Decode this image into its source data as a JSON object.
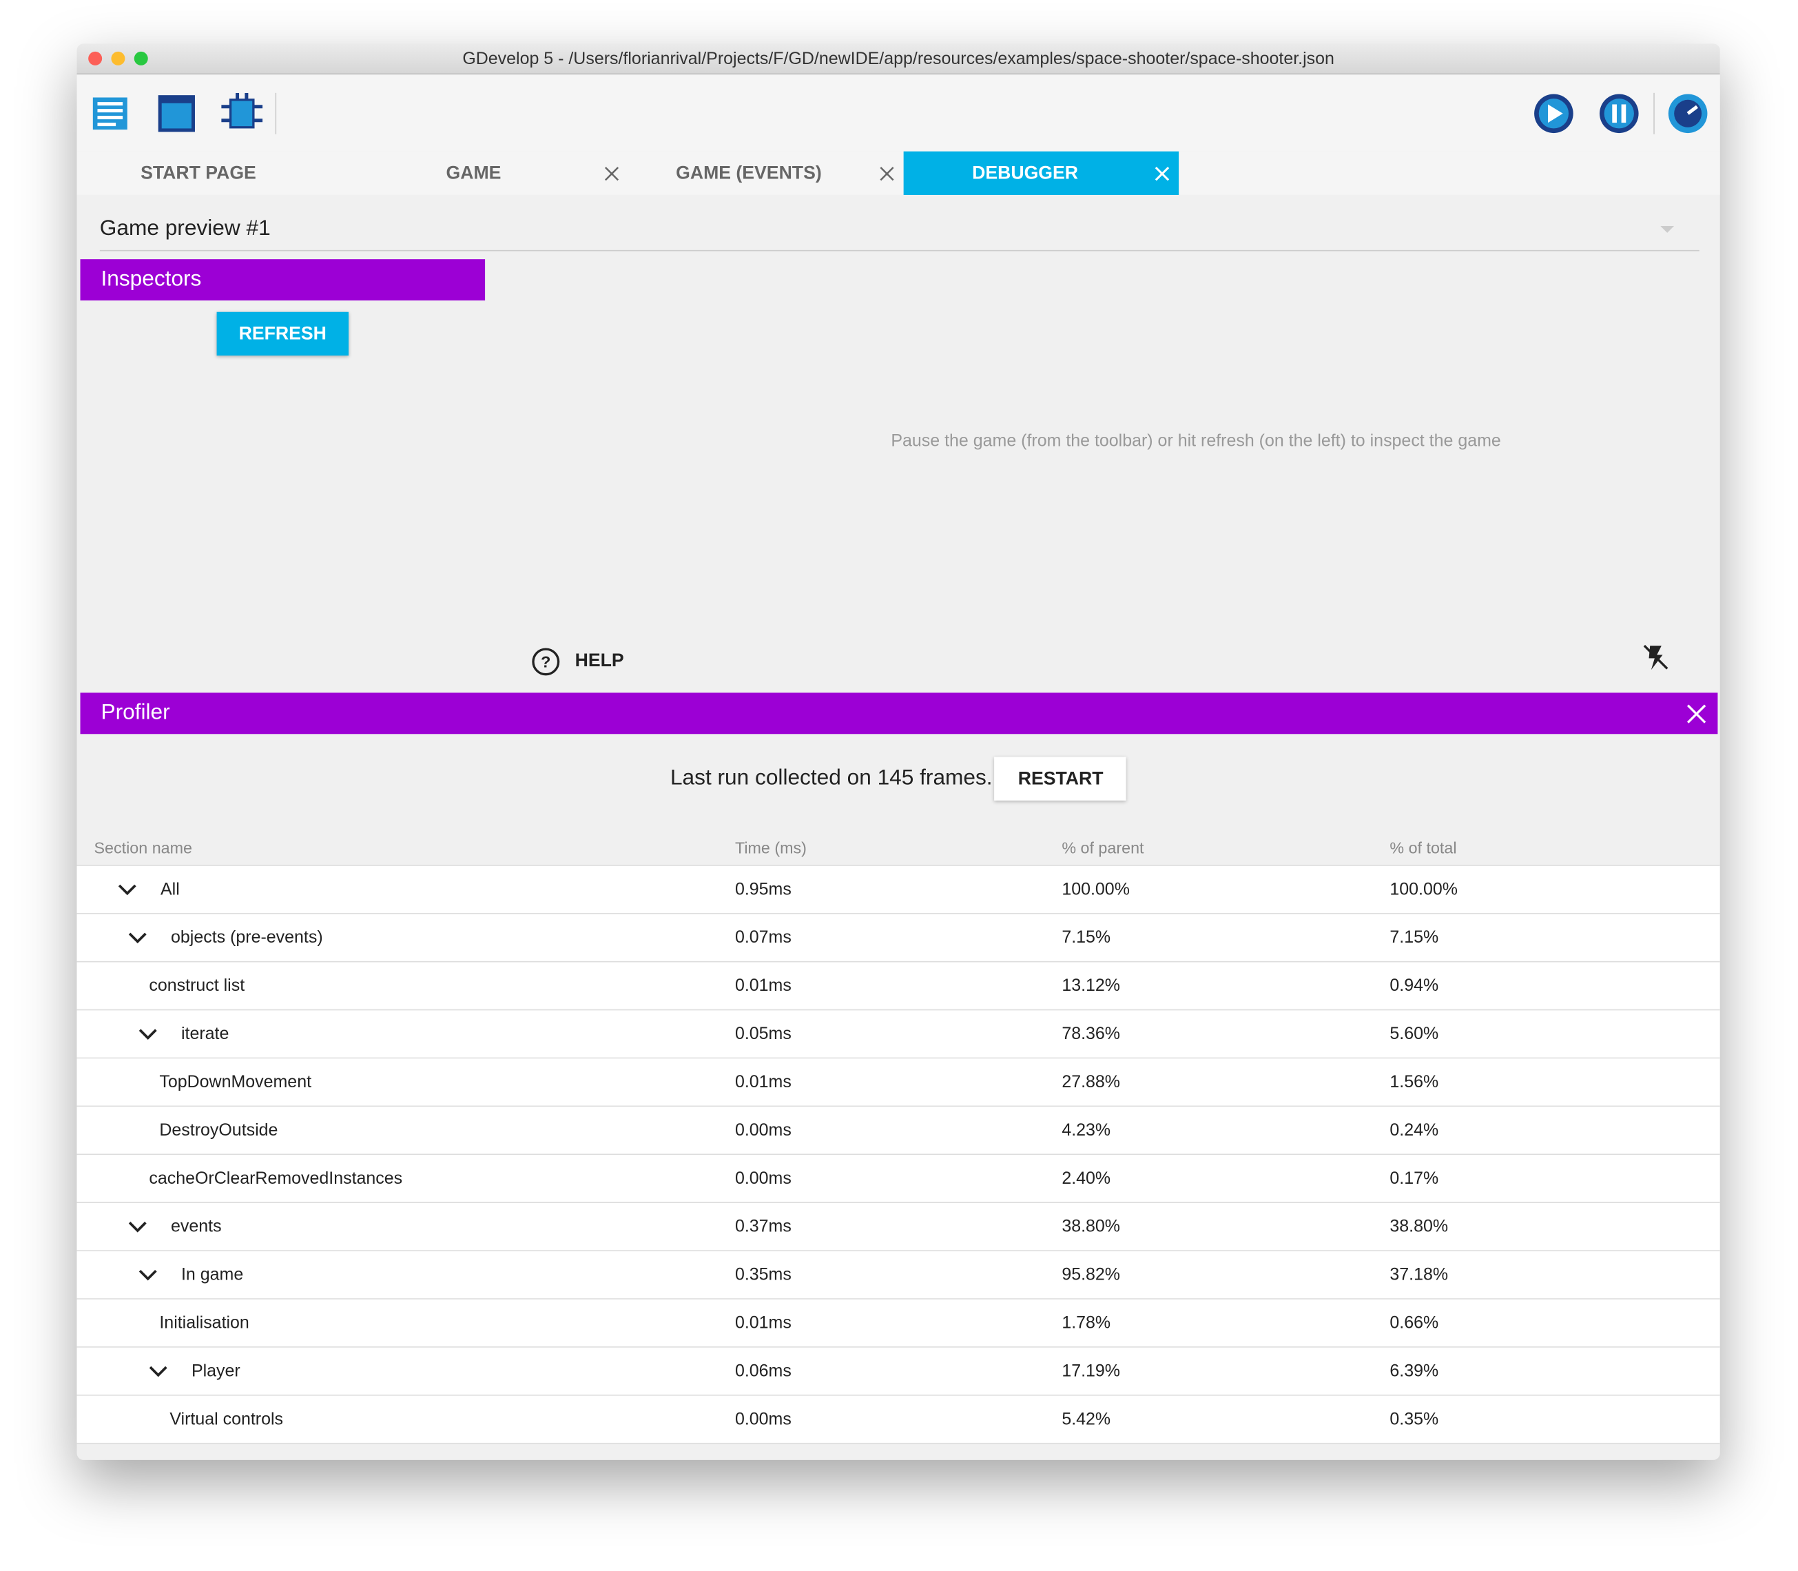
{
  "window": {
    "title": "GDevelop 5 - /Users/florianrival/Projects/F/GD/newIDE/app/resources/examples/space-shooter/space-shooter.json"
  },
  "tabs": [
    "START PAGE",
    "GAME",
    "GAME (EVENTS)",
    "DEBUGGER"
  ],
  "preview_select": "Game preview #1",
  "inspectors": {
    "title": "Inspectors",
    "refresh": "REFRESH",
    "empty_message": "Pause the game (from the toolbar) or hit refresh (on the left) to inspect the game",
    "help": "HELP"
  },
  "profiler": {
    "title": "Profiler",
    "summary": "Last run collected on 145 frames.",
    "restart": "RESTART"
  },
  "table": {
    "columns": [
      "Section name",
      "Time (ms)",
      "% of parent",
      "% of total"
    ],
    "rows": [
      {
        "name": "All",
        "time": "0.95ms",
        "parent": "100.00%",
        "total": "100.00%",
        "children": [
          {
            "name": "objects (pre-events)",
            "time": "0.07ms",
            "parent": "7.15%",
            "total": "7.15%",
            "children": [
              {
                "name": "construct list",
                "time": "0.01ms",
                "parent": "13.12%",
                "total": "0.94%"
              },
              {
                "name": "iterate",
                "time": "0.05ms",
                "parent": "78.36%",
                "total": "5.60%",
                "children": [
                  {
                    "name": "TopDownMovement",
                    "time": "0.01ms",
                    "parent": "27.88%",
                    "total": "1.56%"
                  },
                  {
                    "name": "DestroyOutside",
                    "time": "0.00ms",
                    "parent": "4.23%",
                    "total": "0.24%"
                  }
                ]
              },
              {
                "name": "cacheOrClearRemovedInstances",
                "time": "0.00ms",
                "parent": "2.40%",
                "total": "0.17%"
              }
            ]
          },
          {
            "name": "events",
            "time": "0.37ms",
            "parent": "38.80%",
            "total": "38.80%",
            "children": [
              {
                "name": "In game",
                "time": "0.35ms",
                "parent": "95.82%",
                "total": "37.18%",
                "children": [
                  {
                    "name": "Initialisation",
                    "time": "0.01ms",
                    "parent": "1.78%",
                    "total": "0.66%"
                  },
                  {
                    "name": "Player",
                    "time": "0.06ms",
                    "parent": "17.19%",
                    "total": "6.39%",
                    "children": [
                      {
                        "name": "Virtual controls",
                        "time": "0.00ms",
                        "parent": "5.42%",
                        "total": "0.35%"
                      }
                    ]
                  }
                ]
              }
            ]
          }
        ]
      }
    ]
  }
}
